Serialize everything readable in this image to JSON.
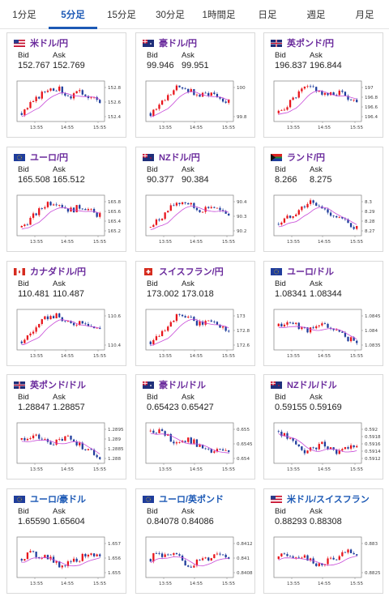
{
  "tabs": [
    {
      "label": "1分足",
      "active": false
    },
    {
      "label": "5分足",
      "active": true
    },
    {
      "label": "15分足",
      "active": false
    },
    {
      "label": "30分足",
      "active": false
    },
    {
      "label": "1時間足",
      "active": false
    },
    {
      "label": "日足",
      "active": false
    },
    {
      "label": "週足",
      "active": false
    },
    {
      "label": "月足",
      "active": false
    }
  ],
  "quote_labels": {
    "bid": "Bid",
    "ask": "Ask"
  },
  "colors": {
    "up": "#e8141b",
    "down": "#1f3d9c",
    "ma": "#c84ad8",
    "frame": "#808080",
    "title": "#6a2a9c",
    "title_alt": "#1c59b5",
    "tab_active": "#1c59b5"
  },
  "cards": [
    {
      "pair": "米ドル/円",
      "flag": "us",
      "bid": "152.767",
      "ask": "152.769",
      "x_ticks": [
        "13:55",
        "14:55",
        "15:55"
      ],
      "y_ticks": [
        "152.8",
        "152.6",
        "152.4"
      ],
      "trend": "up-flat"
    },
    {
      "pair": "豪ドル/円",
      "flag": "au",
      "bid": "99.946",
      "ask": "99.951",
      "x_ticks": [
        "13:55",
        "14:55",
        "15:55"
      ],
      "y_ticks": [
        "100",
        "99.8"
      ],
      "trend": "up-flat"
    },
    {
      "pair": "英ポンド/円",
      "flag": "gb",
      "bid": "196.837",
      "ask": "196.844",
      "x_ticks": [
        "13:55",
        "14:55",
        "15:55"
      ],
      "y_ticks": [
        "197",
        "196.8",
        "196.6",
        "196.4"
      ],
      "trend": "up-flat"
    },
    {
      "pair": "ユーロ/円",
      "flag": "eu",
      "bid": "165.508",
      "ask": "165.512",
      "x_ticks": [
        "13:55",
        "14:55",
        "15:55"
      ],
      "y_ticks": [
        "165.8",
        "165.6",
        "165.4",
        "165.2"
      ],
      "trend": "up-flat"
    },
    {
      "pair": "NZドル/円",
      "flag": "nz",
      "bid": "90.377",
      "ask": "90.384",
      "x_ticks": [
        "13:55",
        "14:55",
        "15:55"
      ],
      "y_ticks": [
        "90.4",
        "90.3",
        "90.2"
      ],
      "trend": "up-flat"
    },
    {
      "pair": "ランド/円",
      "flag": "za",
      "bid": "8.266",
      "ask": "8.275",
      "x_ticks": [
        "13:55",
        "14:55",
        "15:55"
      ],
      "y_ticks": [
        "8.3",
        "8.29",
        "8.28",
        "8.27"
      ],
      "trend": "up-down"
    },
    {
      "pair": "カナダドル/円",
      "flag": "ca",
      "bid": "110.481",
      "ask": "110.487",
      "x_ticks": [
        "13:55",
        "14:55",
        "15:55"
      ],
      "y_ticks": [
        "110.6",
        "110.4"
      ],
      "trend": "up-flat"
    },
    {
      "pair": "スイスフラン/円",
      "flag": "ch",
      "bid": "173.002",
      "ask": "173.018",
      "x_ticks": [
        "13:55",
        "14:55",
        "15:55"
      ],
      "y_ticks": [
        "173",
        "172.8",
        "172.6"
      ],
      "trend": "up-flat"
    },
    {
      "pair": "ユーロ/ドル",
      "flag": "eu",
      "bid": "1.08341",
      "ask": "1.08344",
      "x_ticks": [
        "13:55",
        "14:55",
        "15:55"
      ],
      "y_ticks": [
        "1.0845",
        "1.084",
        "1.0835"
      ],
      "trend": "flat-down"
    },
    {
      "pair": "英ポンド/ドル",
      "flag": "gb",
      "bid": "1.28847",
      "ask": "1.28857",
      "x_ticks": [
        "13:55",
        "14:55",
        "15:55"
      ],
      "y_ticks": [
        "1.2895",
        "1.289",
        "1.2885",
        "1.288"
      ],
      "trend": "flat-down"
    },
    {
      "pair": "豪ドル/ドル",
      "flag": "au",
      "bid": "0.65423",
      "ask": "0.65427",
      "x_ticks": [
        "13:55",
        "14:55",
        "15:55"
      ],
      "y_ticks": [
        "0.655",
        "0.6545",
        "0.654"
      ],
      "trend": "down"
    },
    {
      "pair": "NZドル/ドル",
      "flag": "nz",
      "bid": "0.59155",
      "ask": "0.59169",
      "x_ticks": [
        "13:55",
        "14:55",
        "15:55"
      ],
      "y_ticks": [
        "0.592",
        "0.5918",
        "0.5916",
        "0.5914",
        "0.5912"
      ],
      "trend": "down-flat"
    },
    {
      "pair": "ユーロ/豪ドル",
      "flag": "eu",
      "bid": "1.65590",
      "ask": "1.65604",
      "x_ticks": [
        "13:55",
        "14:55",
        "15:55"
      ],
      "y_ticks": [
        "1.657",
        "1.656",
        "1.655"
      ],
      "trend": "flat"
    },
    {
      "pair": "ユーロ/英ポンド",
      "flag": "eu",
      "bid": "0.84078",
      "ask": "0.84086",
      "x_ticks": [
        "13:55",
        "14:55",
        "15:55"
      ],
      "y_ticks": [
        "0.8412",
        "0.841",
        "0.8408"
      ],
      "trend": "flat"
    },
    {
      "pair": "米ドル/スイスフラン",
      "flag": "us",
      "bid": "0.88293",
      "ask": "0.88308",
      "x_ticks": [
        "13:55",
        "14:55",
        "15:55"
      ],
      "y_ticks": [
        "0.883",
        "0.8825"
      ],
      "trend": "flat"
    }
  ]
}
